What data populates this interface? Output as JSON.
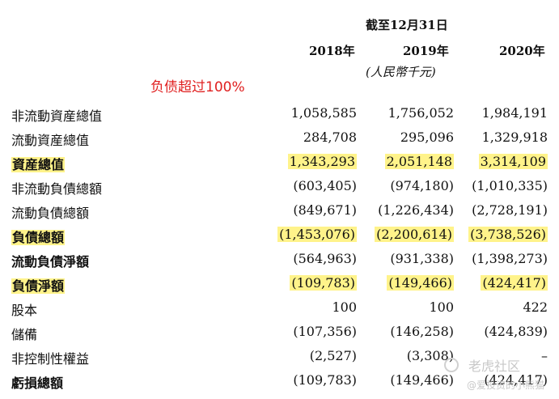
{
  "header": {
    "period_label": "截至12月31日",
    "years": [
      "2018年",
      "2019年",
      "2020年"
    ],
    "unit": "(人民幣千元)"
  },
  "annotation": "负债超过100%",
  "rows": [
    {
      "label": "非流動資産總值",
      "values": [
        "1,058,585",
        "1,756,052",
        "1,984,191"
      ]
    },
    {
      "label": "流動資産總值",
      "values": [
        "284,708",
        "295,096",
        "1,329,918"
      ]
    },
    {
      "label": "資産總值",
      "values": [
        "1,343,293",
        "2,051,148",
        "3,314,109"
      ]
    },
    {
      "label": "非流動負債總額",
      "values": [
        "(603,405)",
        "(974,180)",
        "(1,010,335)"
      ]
    },
    {
      "label": "流動負債總額",
      "values": [
        "(849,671)",
        "(1,226,434)",
        "(2,728,191)"
      ]
    },
    {
      "label": "負債總額",
      "values": [
        "(1,453,076)",
        "(2,200,614)",
        "(3,738,526)"
      ]
    },
    {
      "label": "流動負債淨額",
      "values": [
        "(564,963)",
        "(931,338)",
        "(1,398,273)"
      ]
    },
    {
      "label": "負債淨額",
      "values": [
        "(109,783)",
        "(149,466)",
        "(424,417)"
      ]
    },
    {
      "label": "股本",
      "values": [
        "100",
        "100",
        "422"
      ]
    },
    {
      "label": "儲備",
      "values": [
        "(107,356)",
        "(146,258)",
        "(424,839)"
      ]
    },
    {
      "label": "非控制性權益",
      "values": [
        "(2,527)",
        "(3,308)",
        "–"
      ]
    },
    {
      "label": "虧損總額",
      "values": [
        "(109,783)",
        "(149,466)",
        "(424,417)"
      ]
    }
  ],
  "watermark": {
    "brand": "老虎社区",
    "handle": "@爱投资的小熊猫"
  },
  "colors": {
    "highlight": "#fff38a",
    "annotation": "#e02020",
    "text": "#111111"
  }
}
